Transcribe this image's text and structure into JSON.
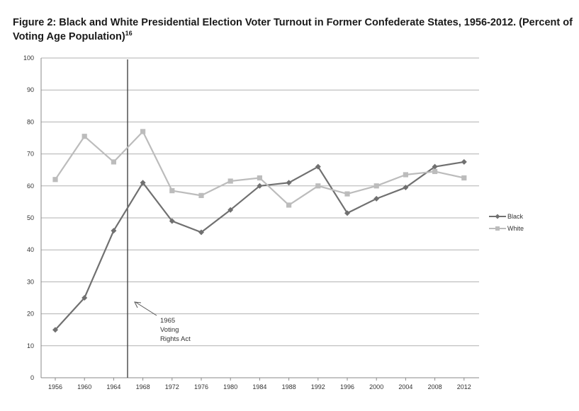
{
  "figure": {
    "title_main": "Figure 2: Black and White Presidential Election Voter Turnout in Former Confederate States, 1956-2012. (Percent of Voting Age Population)",
    "title_footnote": "16"
  },
  "chart_data": {
    "type": "line",
    "x": [
      1956,
      1960,
      1964,
      1968,
      1972,
      1976,
      1980,
      1984,
      1988,
      1992,
      1996,
      2000,
      2004,
      2008,
      2012
    ],
    "series": [
      {
        "name": "Black",
        "color": "#707070",
        "marker": "diamond",
        "values": [
          15,
          25,
          46,
          61,
          49,
          45.5,
          52.5,
          60,
          61,
          66,
          51.5,
          56,
          59.5,
          66,
          67.5
        ]
      },
      {
        "name": "White",
        "color": "#bcbcbc",
        "marker": "square",
        "values": [
          62,
          75.5,
          67.5,
          77,
          58.5,
          57,
          61.5,
          62.5,
          54,
          60,
          57.5,
          60,
          63.5,
          64.5,
          62.5
        ]
      }
    ],
    "ylim": [
      0,
      100
    ],
    "yticks": [
      0,
      10,
      20,
      30,
      40,
      50,
      60,
      70,
      80,
      90,
      100
    ],
    "xticks": [
      "1956",
      "1960",
      "1964",
      "1968",
      "1972",
      "1976",
      "1980",
      "1984",
      "1988",
      "1992",
      "1996",
      "2000",
      "2004",
      "2008",
      "2012"
    ],
    "grid": "horizontal",
    "legend_position": "right",
    "reference_line": {
      "x": 1966
    },
    "annotation": {
      "lines": [
        "1965",
        "Voting",
        "Rights Act"
      ]
    }
  }
}
